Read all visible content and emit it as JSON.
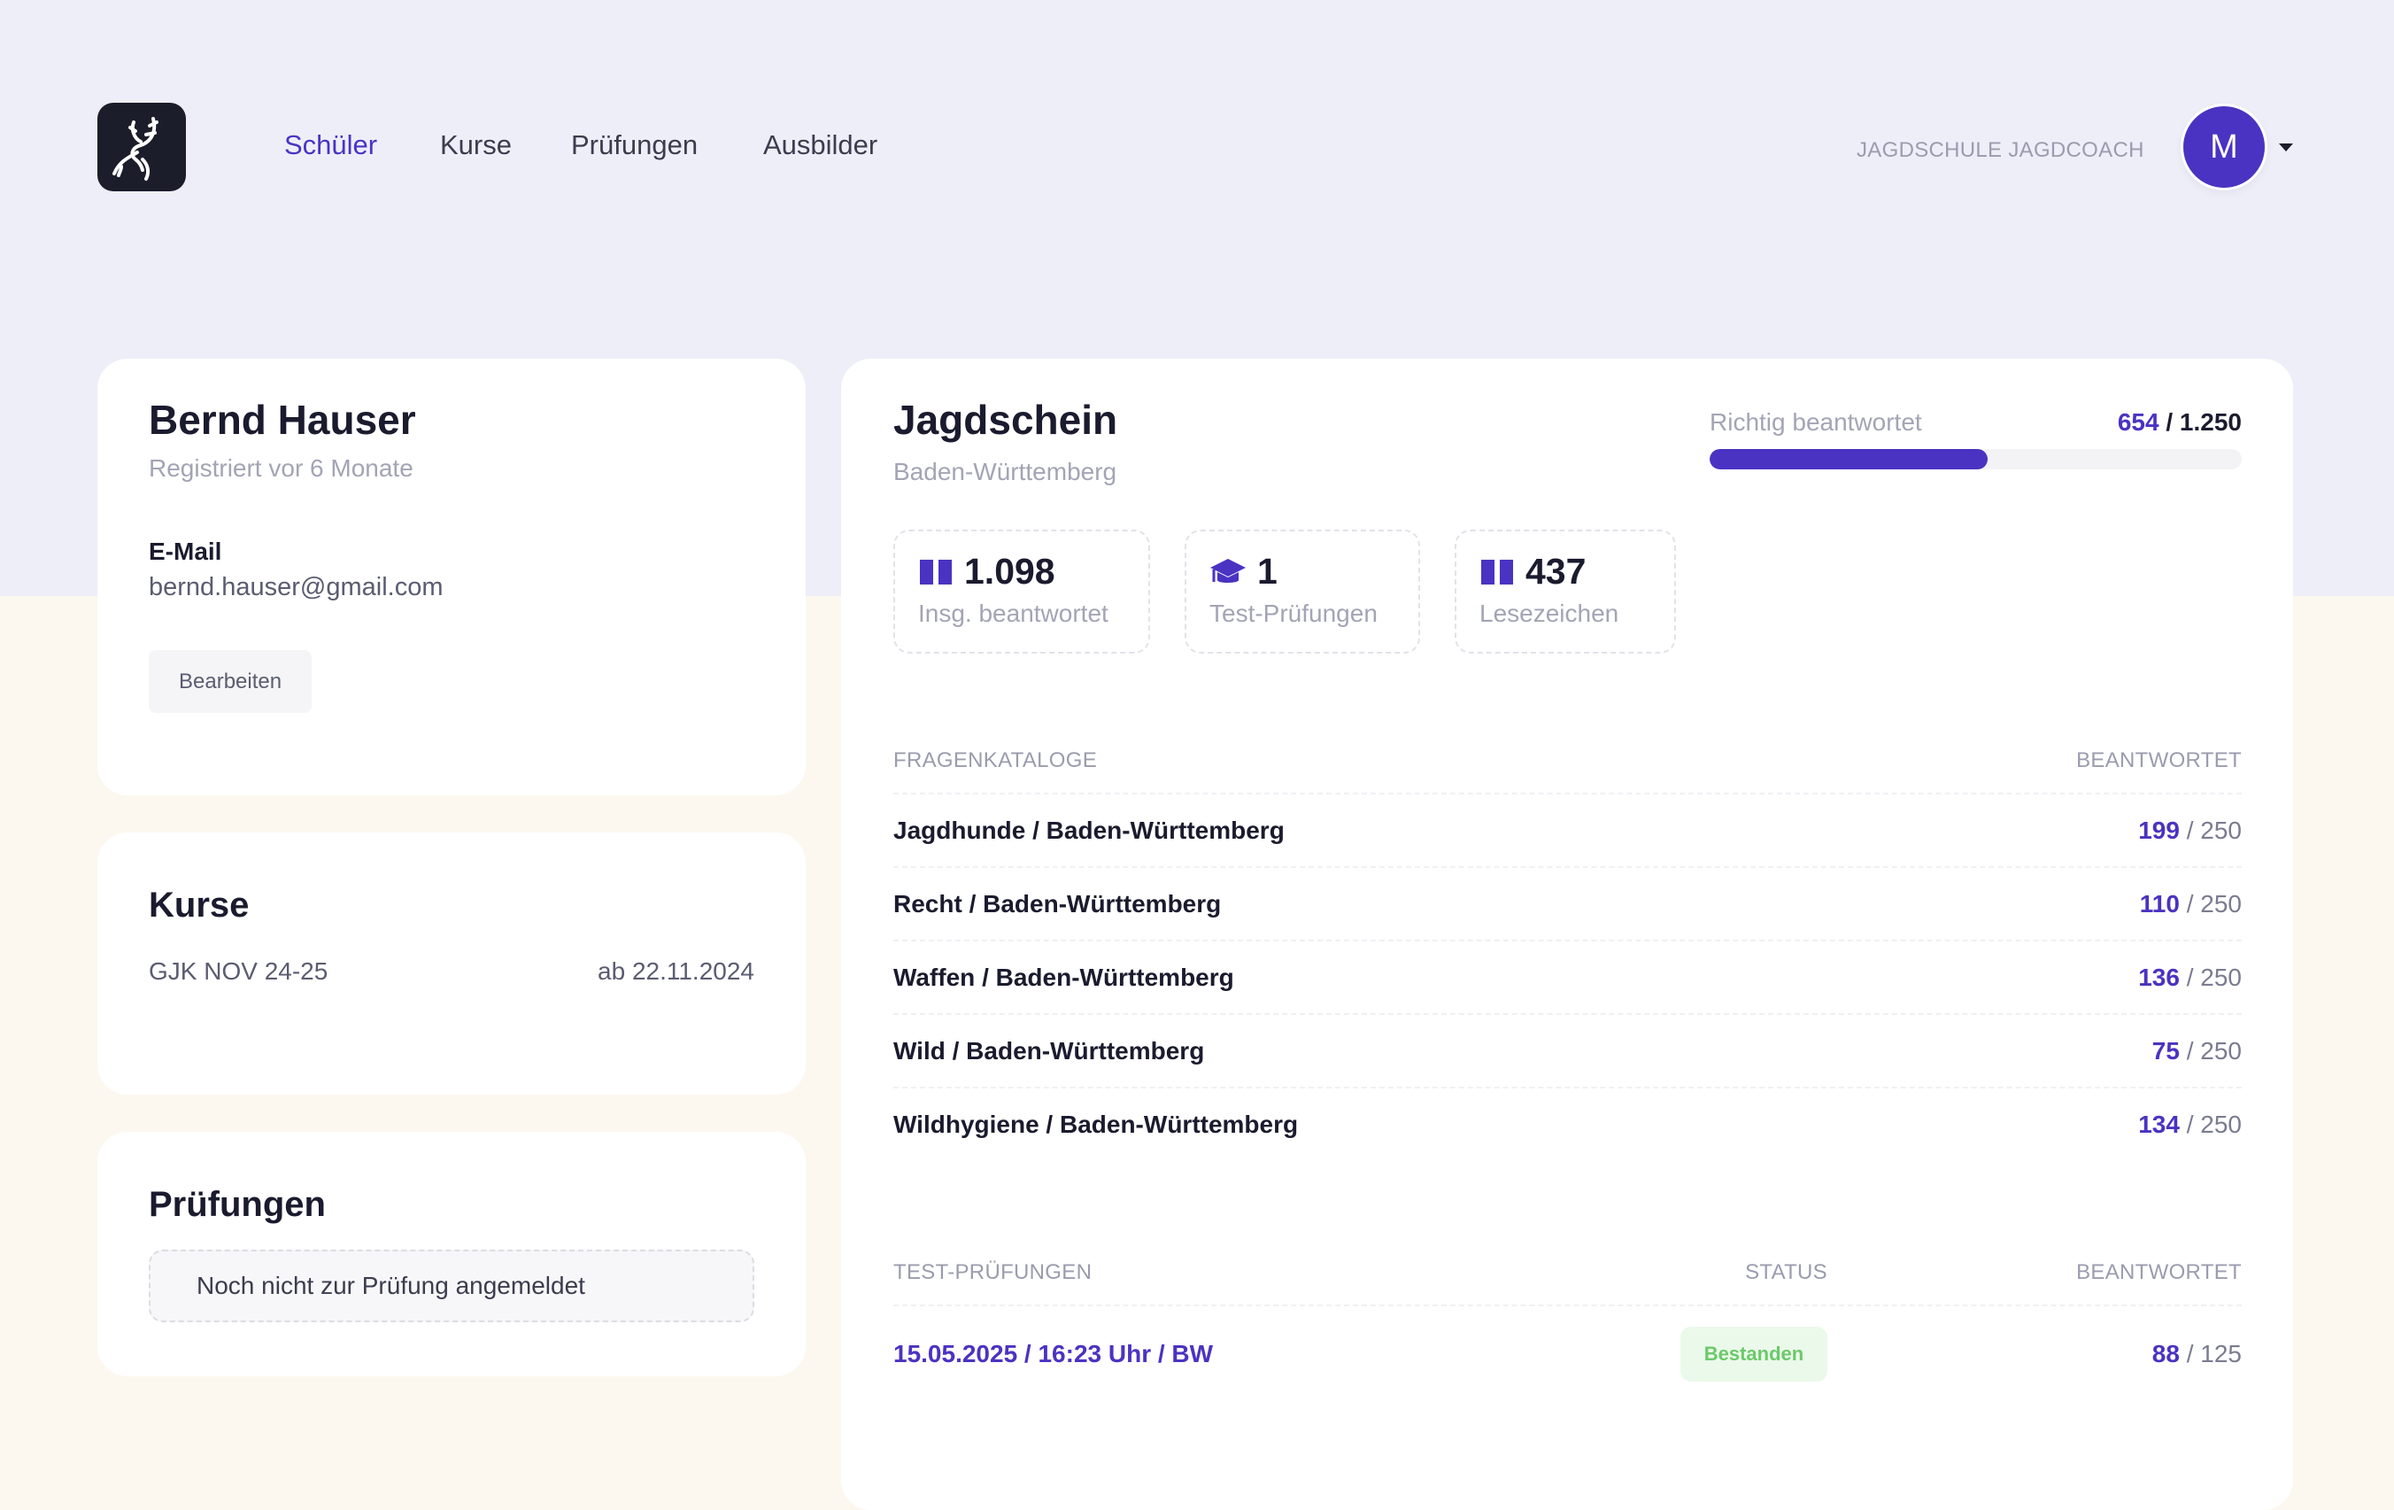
{
  "header": {
    "nav": [
      "Schüler",
      "Kurse",
      "Prüfungen",
      "Ausbilder"
    ],
    "school": "JAGDSCHULE JAGDCOACH",
    "avatar_initial": "M"
  },
  "profile": {
    "name": "Bernd Hauser",
    "registered": "Registriert vor 6 Monate",
    "email_label": "E-Mail",
    "email": "bernd.hauser@gmail.com",
    "edit_label": "Bearbeiten"
  },
  "courses": {
    "title": "Kurse",
    "items": [
      {
        "name": "GJK NOV 24-25",
        "date": "ab 22.11.2024"
      }
    ]
  },
  "exams": {
    "title": "Prüfungen",
    "empty": "Noch nicht zur Prüfung angemeldet"
  },
  "main": {
    "title": "Jagdschein",
    "region": "Baden-Württemberg",
    "progress": {
      "label": "Richtig beantwortet",
      "value": "654",
      "total": "/ 1.250",
      "fraction": 0.5232
    },
    "stats": [
      {
        "icon": "book-icon",
        "value": "1.098",
        "label": "Insg. beantwortet"
      },
      {
        "icon": "graduation-cap-icon",
        "value": "1",
        "label": "Test-Prüfungen"
      },
      {
        "icon": "book-icon",
        "value": "437",
        "label": "Lesezeichen"
      }
    ],
    "catalog_header": {
      "name": "FRAGENKATALOGE",
      "answered": "BEANTWORTET"
    },
    "catalogs": [
      {
        "name": "Jagdhunde / Baden-Württemberg",
        "value": "199",
        "total": "/ 250"
      },
      {
        "name": "Recht / Baden-Württemberg",
        "value": "110",
        "total": "/ 250"
      },
      {
        "name": "Waffen / Baden-Württemberg",
        "value": "136",
        "total": "/ 250"
      },
      {
        "name": "Wild / Baden-Württemberg",
        "value": "75",
        "total": "/ 250"
      },
      {
        "name": "Wildhygiene / Baden-Württemberg",
        "value": "134",
        "total": "/ 250"
      }
    ],
    "tests_header": {
      "name": "TEST-PRÜFUNGEN",
      "status": "STATUS",
      "answered": "BEANTWORTET"
    },
    "tests": [
      {
        "name": "15.05.2025 / 16:23 Uhr / BW",
        "status": "Bestanden",
        "value": "88",
        "total": "/ 125"
      }
    ]
  },
  "colors": {
    "accent": "#4a33c2",
    "success": "#6cc96a"
  }
}
